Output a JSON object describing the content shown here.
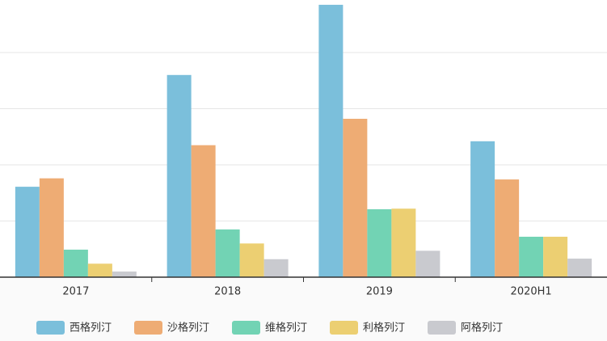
{
  "chart_data": {
    "type": "bar",
    "categories": [
      "2017",
      "2018",
      "2019",
      "2020H1"
    ],
    "series": [
      {
        "name": "西格列汀",
        "color": "#7bbfdb",
        "values": [
          1.61,
          3.6,
          4.85,
          2.42
        ]
      },
      {
        "name": "沙格列汀",
        "color": "#eeac74",
        "values": [
          1.76,
          2.35,
          2.82,
          1.74
        ]
      },
      {
        "name": "维格列汀",
        "color": "#72d3b4",
        "values": [
          0.49,
          0.85,
          1.21,
          0.72
        ]
      },
      {
        "name": "利格列汀",
        "color": "#eccf72",
        "values": [
          0.24,
          0.6,
          1.22,
          0.72
        ]
      },
      {
        "name": "阿格列汀",
        "color": "#c9cacf",
        "values": [
          0.1,
          0.32,
          0.47,
          0.33
        ]
      }
    ],
    "ylim": [
      0,
      5
    ],
    "yticks": [
      0,
      1,
      2,
      3,
      4,
      5
    ],
    "grid": true,
    "legend": "bottom"
  }
}
